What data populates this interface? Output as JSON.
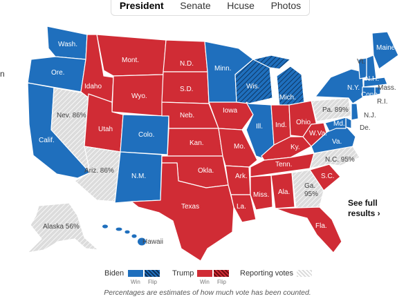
{
  "tabs": [
    "President",
    "Senate",
    "Hcuse",
    "Photos"
  ],
  "edge_char": "n",
  "colors": {
    "biden": "#1f6fbd",
    "trump": "#d02c35",
    "reporting": "#dcdcdc"
  },
  "states": {
    "wash": "Wash.",
    "ore": "Ore.",
    "calif": "Calif.",
    "nev": "Nev. 86%",
    "idaho": "Idaho",
    "mont": "Mont.",
    "wyo": "Wyo.",
    "utah": "Utah",
    "ariz": "Ariz. 86%",
    "colo": "Colo.",
    "nm": "N.M.",
    "nd": "N.D.",
    "sd": "S.D.",
    "neb": "Neb.",
    "kan": "Kan.",
    "okla": "Okla.",
    "texas": "Texas",
    "minn": "Minn.",
    "iowa": "Iowa",
    "mo": "Mo.",
    "ark": "Ark.",
    "la": "La.",
    "wis": "Wis.",
    "ill": "Ill.",
    "mich": "Mich.",
    "ind": "Ind.",
    "ohio": "Ohio",
    "ky": "Ky.",
    "tenn": "Tenn.",
    "miss": "Miss.",
    "ala": "Ala.",
    "ga": "Ga.",
    "ga_pct": "95%",
    "fla": "Fla.",
    "sc": "S.C.",
    "nc": "N.C. 95%",
    "va": "Va.",
    "wva": "W.Va.",
    "pa": "Pa. 89%",
    "ny": "N.Y.",
    "vt": "Vt.",
    "nh": "N.H.",
    "maine": "Maine",
    "mass": "Mass.",
    "conn": "Conn.",
    "ri": "R.I.",
    "nj": "N.J.",
    "del": "De.",
    "md": "Md.",
    "alaska": "Alaska 56%",
    "hawaii": "Hawaii"
  },
  "see_full": {
    "line1": "See full",
    "line2": "results ›"
  },
  "legend": {
    "biden": "Biden",
    "trump": "Trump",
    "win": "Win",
    "flip": "Flip",
    "reporting": "Reporting votes"
  },
  "footnote": "Percentages are estimates of how much vote has been counted."
}
